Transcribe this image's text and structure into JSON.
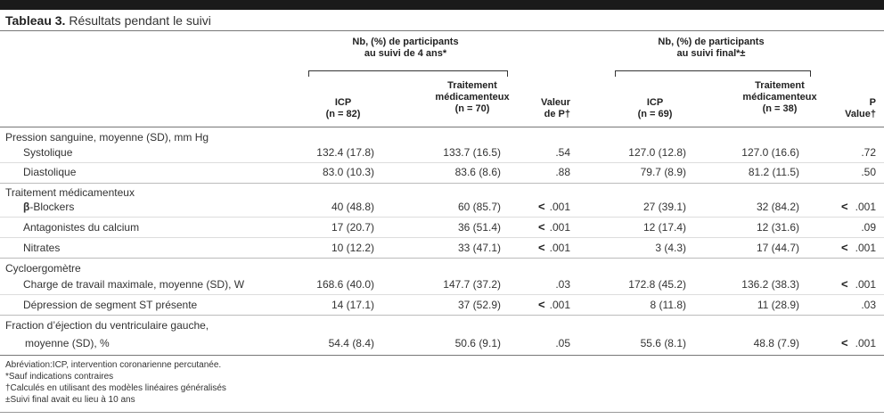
{
  "title": {
    "bold": "Tableau 3.",
    "rest": " Résultats pendant le suivi"
  },
  "group_headers": {
    "g1": {
      "line1": "Nb, (%) de participants",
      "line2": "au suivi de 4 ans*"
    },
    "g2": {
      "line1": "Nb, (%) de participants",
      "line2": "au suivi final*±"
    }
  },
  "columns": {
    "icp4_l1": "ICP",
    "icp4_l2": "(n = 82)",
    "tm4_l1": "Traitement",
    "tm4_l2": "médicamenteux",
    "tm4_l3": "(n = 70)",
    "p4_l1": "Valeur",
    "p4_l2": "de P†",
    "icpf_l1": "ICP",
    "icpf_l2": "(n = 69)",
    "tmf_l1": "Traitement",
    "tmf_l2": "médicamenteux",
    "tmf_l3": "(n = 38)",
    "pf_l1": "P",
    "pf_l2": "Value†"
  },
  "sections": {
    "pression": "Pression sanguine, moyenne (SD), mm Hg",
    "traitement": "Traitement médicamenteux",
    "cyclo": "Cycloergomètre",
    "fraction": "Fraction d’éjection du ventriculaire gauche,"
  },
  "rows": [
    {
      "label": "Systolique",
      "icp4": "132.4 (17.8)",
      "tm4": "133.7 (16.5)",
      "p4": ".54",
      "icpf": "127.0 (12.8)",
      "tmf": "127.0 (16.6)",
      "pf": ".72"
    },
    {
      "label": "Diastolique",
      "icp4": "83.0 (10.3)",
      "tm4": "83.6 (8.6)",
      "p4": ".88",
      "icpf": "79.7 (8.9)",
      "tmf": "81.2 (11.5)",
      "pf": ".50"
    },
    {
      "label_prefix": "β",
      "label": "-Blockers",
      "icp4": "40 (48.8)",
      "tm4": "60 (85.7)",
      "p4_lt": "<",
      "p4": ".001",
      "icpf": "27 (39.1)",
      "tmf": "32 (84.2)",
      "pf_lt": "<",
      "pf": ".001"
    },
    {
      "label": "Antagonistes du calcium",
      "icp4": "17 (20.7)",
      "tm4": "36 (51.4)",
      "p4_lt": "<",
      "p4": ".001",
      "icpf": "12 (17.4)",
      "tmf": "12 (31.6)",
      "pf": ".09"
    },
    {
      "label": "Nitrates",
      "icp4": "10 (12.2)",
      "tm4": "33 (47.1)",
      "p4_lt": "<",
      "p4": ".001",
      "icpf": "3 (4.3)",
      "tmf": "17 (44.7)",
      "pf_lt": "<",
      "pf": ".001"
    },
    {
      "label": "Charge de travail maximale, moyenne (SD), W",
      "icp4": "168.6 (40.0)",
      "tm4": "147.7 (37.2)",
      "p4": ".03",
      "icpf": "172.8 (45.2)",
      "tmf": "136.2 (38.3)",
      "pf_lt": "<",
      "pf": ".001"
    },
    {
      "label": "Dépression de segment ST présente",
      "icp4": "14 (17.1)",
      "tm4": "37 (52.9)",
      "p4_lt": "<",
      "p4": ".001",
      "icpf": "8 (11.8)",
      "tmf": "11 (28.9)",
      "pf": ".03"
    },
    {
      "label": "moyenne (SD), %",
      "icp4": "54.4 (8.4)",
      "tm4": "50.6 (9.1)",
      "p4": ".05",
      "icpf": "55.6 (8.1)",
      "tmf": "48.8 (7.9)",
      "pf_lt": "<",
      "pf": ".001"
    }
  ],
  "footnotes": {
    "f1": "Abréviation:ICP, intervention coronarienne percutanée.",
    "f2": "*Sauf indications contraires",
    "f3": "†Calculés en utilisant des modèles linéaires généralisés",
    "f4": "±Suivi final avait eu lieu à 10 ans"
  }
}
